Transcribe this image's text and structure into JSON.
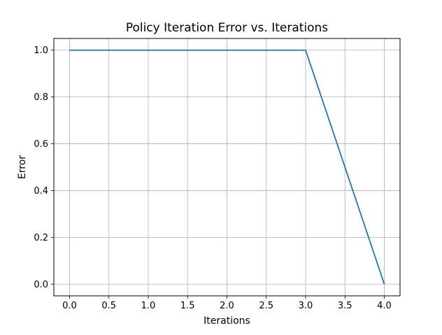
{
  "chart_data": {
    "type": "line",
    "title": "Policy Iteration Error vs. Iterations",
    "xlabel": "Iterations",
    "ylabel": "Error",
    "xlim": [
      -0.2,
      4.2
    ],
    "ylim": [
      -0.05,
      1.05
    ],
    "xticks": [
      0.0,
      0.5,
      1.0,
      1.5,
      2.0,
      2.5,
      3.0,
      3.5,
      4.0
    ],
    "xtick_labels": [
      "0.0",
      "0.5",
      "1.0",
      "1.5",
      "2.0",
      "2.5",
      "3.0",
      "3.5",
      "4.0"
    ],
    "yticks": [
      0.0,
      0.2,
      0.4,
      0.6,
      0.8,
      1.0
    ],
    "ytick_labels": [
      "0.0",
      "0.2",
      "0.4",
      "0.6",
      "0.8",
      "1.0"
    ],
    "grid": true,
    "series": [
      {
        "x": [
          0,
          1,
          2,
          3,
          4
        ],
        "y": [
          1.0,
          1.0,
          1.0,
          1.0,
          0.0
        ],
        "color": "#1f77b4"
      }
    ]
  }
}
